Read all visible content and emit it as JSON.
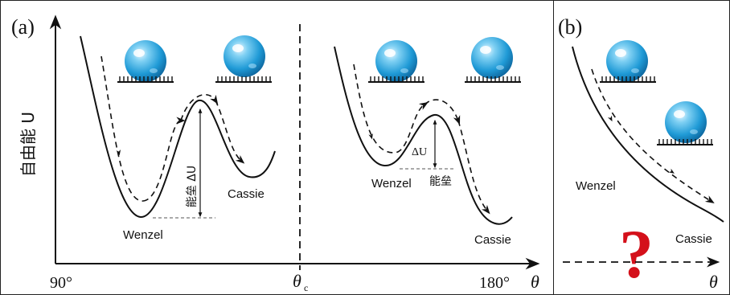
{
  "panel_a": {
    "label": "(a)",
    "y_axis_label": "自由能 U",
    "x_tick_left": "90°",
    "x_tick_mid": "θ",
    "x_tick_mid_sub": "c",
    "x_tick_right": "180°",
    "x_axis_symbol": "θ",
    "left_well": {
      "wenzel_label": "Wenzel",
      "cassie_label": "Cassie",
      "barrier_label": "能垒 ΔU"
    },
    "right_well": {
      "wenzel_label": "Wenzel",
      "cassie_label": "Cassie",
      "delta_label": "ΔU",
      "barrier_label": "能垒"
    }
  },
  "panel_b": {
    "label": "(b)",
    "wenzel_label": "Wenzel",
    "cassie_label": "Cassie",
    "question_mark": "?",
    "x_axis_symbol": "θ"
  },
  "colors": {
    "droplet": "#29a3dc",
    "question": "#d4101a",
    "line": "#111111"
  }
}
